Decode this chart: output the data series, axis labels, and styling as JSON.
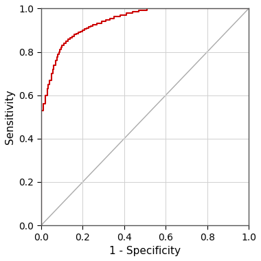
{
  "title": "",
  "xlabel": "1 - Specificity",
  "ylabel": "Sensitivity",
  "xlim": [
    0.0,
    1.0
  ],
  "ylim": [
    0.0,
    1.0
  ],
  "xticks": [
    0.0,
    0.2,
    0.4,
    0.6,
    0.8,
    1.0
  ],
  "yticks": [
    0.0,
    0.2,
    0.4,
    0.6,
    0.8,
    1.0
  ],
  "diagonal_color": "#aaaaaa",
  "roc_color": "#cc0000",
  "background_color": "#ffffff",
  "grid_color": "#d0d0d0",
  "spine_color": "#555555",
  "roc_x": [
    0.0,
    0.0,
    0.0,
    0.01,
    0.01,
    0.02,
    0.02,
    0.03,
    0.03,
    0.035,
    0.035,
    0.04,
    0.04,
    0.05,
    0.05,
    0.055,
    0.055,
    0.06,
    0.06,
    0.07,
    0.07,
    0.075,
    0.075,
    0.08,
    0.08,
    0.085,
    0.085,
    0.09,
    0.09,
    0.095,
    0.095,
    0.1,
    0.1,
    0.11,
    0.11,
    0.12,
    0.12,
    0.13,
    0.13,
    0.14,
    0.14,
    0.15,
    0.15,
    0.16,
    0.16,
    0.17,
    0.17,
    0.18,
    0.18,
    0.19,
    0.19,
    0.2,
    0.2,
    0.21,
    0.21,
    0.22,
    0.22,
    0.23,
    0.23,
    0.24,
    0.24,
    0.25,
    0.25,
    0.27,
    0.27,
    0.29,
    0.29,
    0.31,
    0.31,
    0.33,
    0.33,
    0.35,
    0.35,
    0.38,
    0.38,
    0.41,
    0.41,
    0.44,
    0.44,
    0.47,
    0.47,
    0.51,
    0.51,
    0.56,
    0.56,
    1.0
  ],
  "roc_y": [
    0.0,
    0.19,
    0.53,
    0.53,
    0.56,
    0.56,
    0.6,
    0.6,
    0.63,
    0.63,
    0.65,
    0.65,
    0.67,
    0.67,
    0.7,
    0.7,
    0.72,
    0.72,
    0.74,
    0.74,
    0.76,
    0.76,
    0.775,
    0.775,
    0.79,
    0.79,
    0.8,
    0.8,
    0.81,
    0.81,
    0.82,
    0.82,
    0.83,
    0.83,
    0.84,
    0.84,
    0.85,
    0.85,
    0.858,
    0.858,
    0.865,
    0.865,
    0.872,
    0.872,
    0.88,
    0.88,
    0.885,
    0.885,
    0.89,
    0.89,
    0.895,
    0.895,
    0.9,
    0.9,
    0.905,
    0.905,
    0.91,
    0.91,
    0.915,
    0.915,
    0.92,
    0.92,
    0.925,
    0.925,
    0.933,
    0.933,
    0.94,
    0.94,
    0.948,
    0.948,
    0.955,
    0.955,
    0.963,
    0.963,
    0.97,
    0.97,
    0.978,
    0.978,
    0.985,
    0.985,
    0.993,
    0.993,
    1.0,
    1.0,
    1.0,
    1.0
  ]
}
